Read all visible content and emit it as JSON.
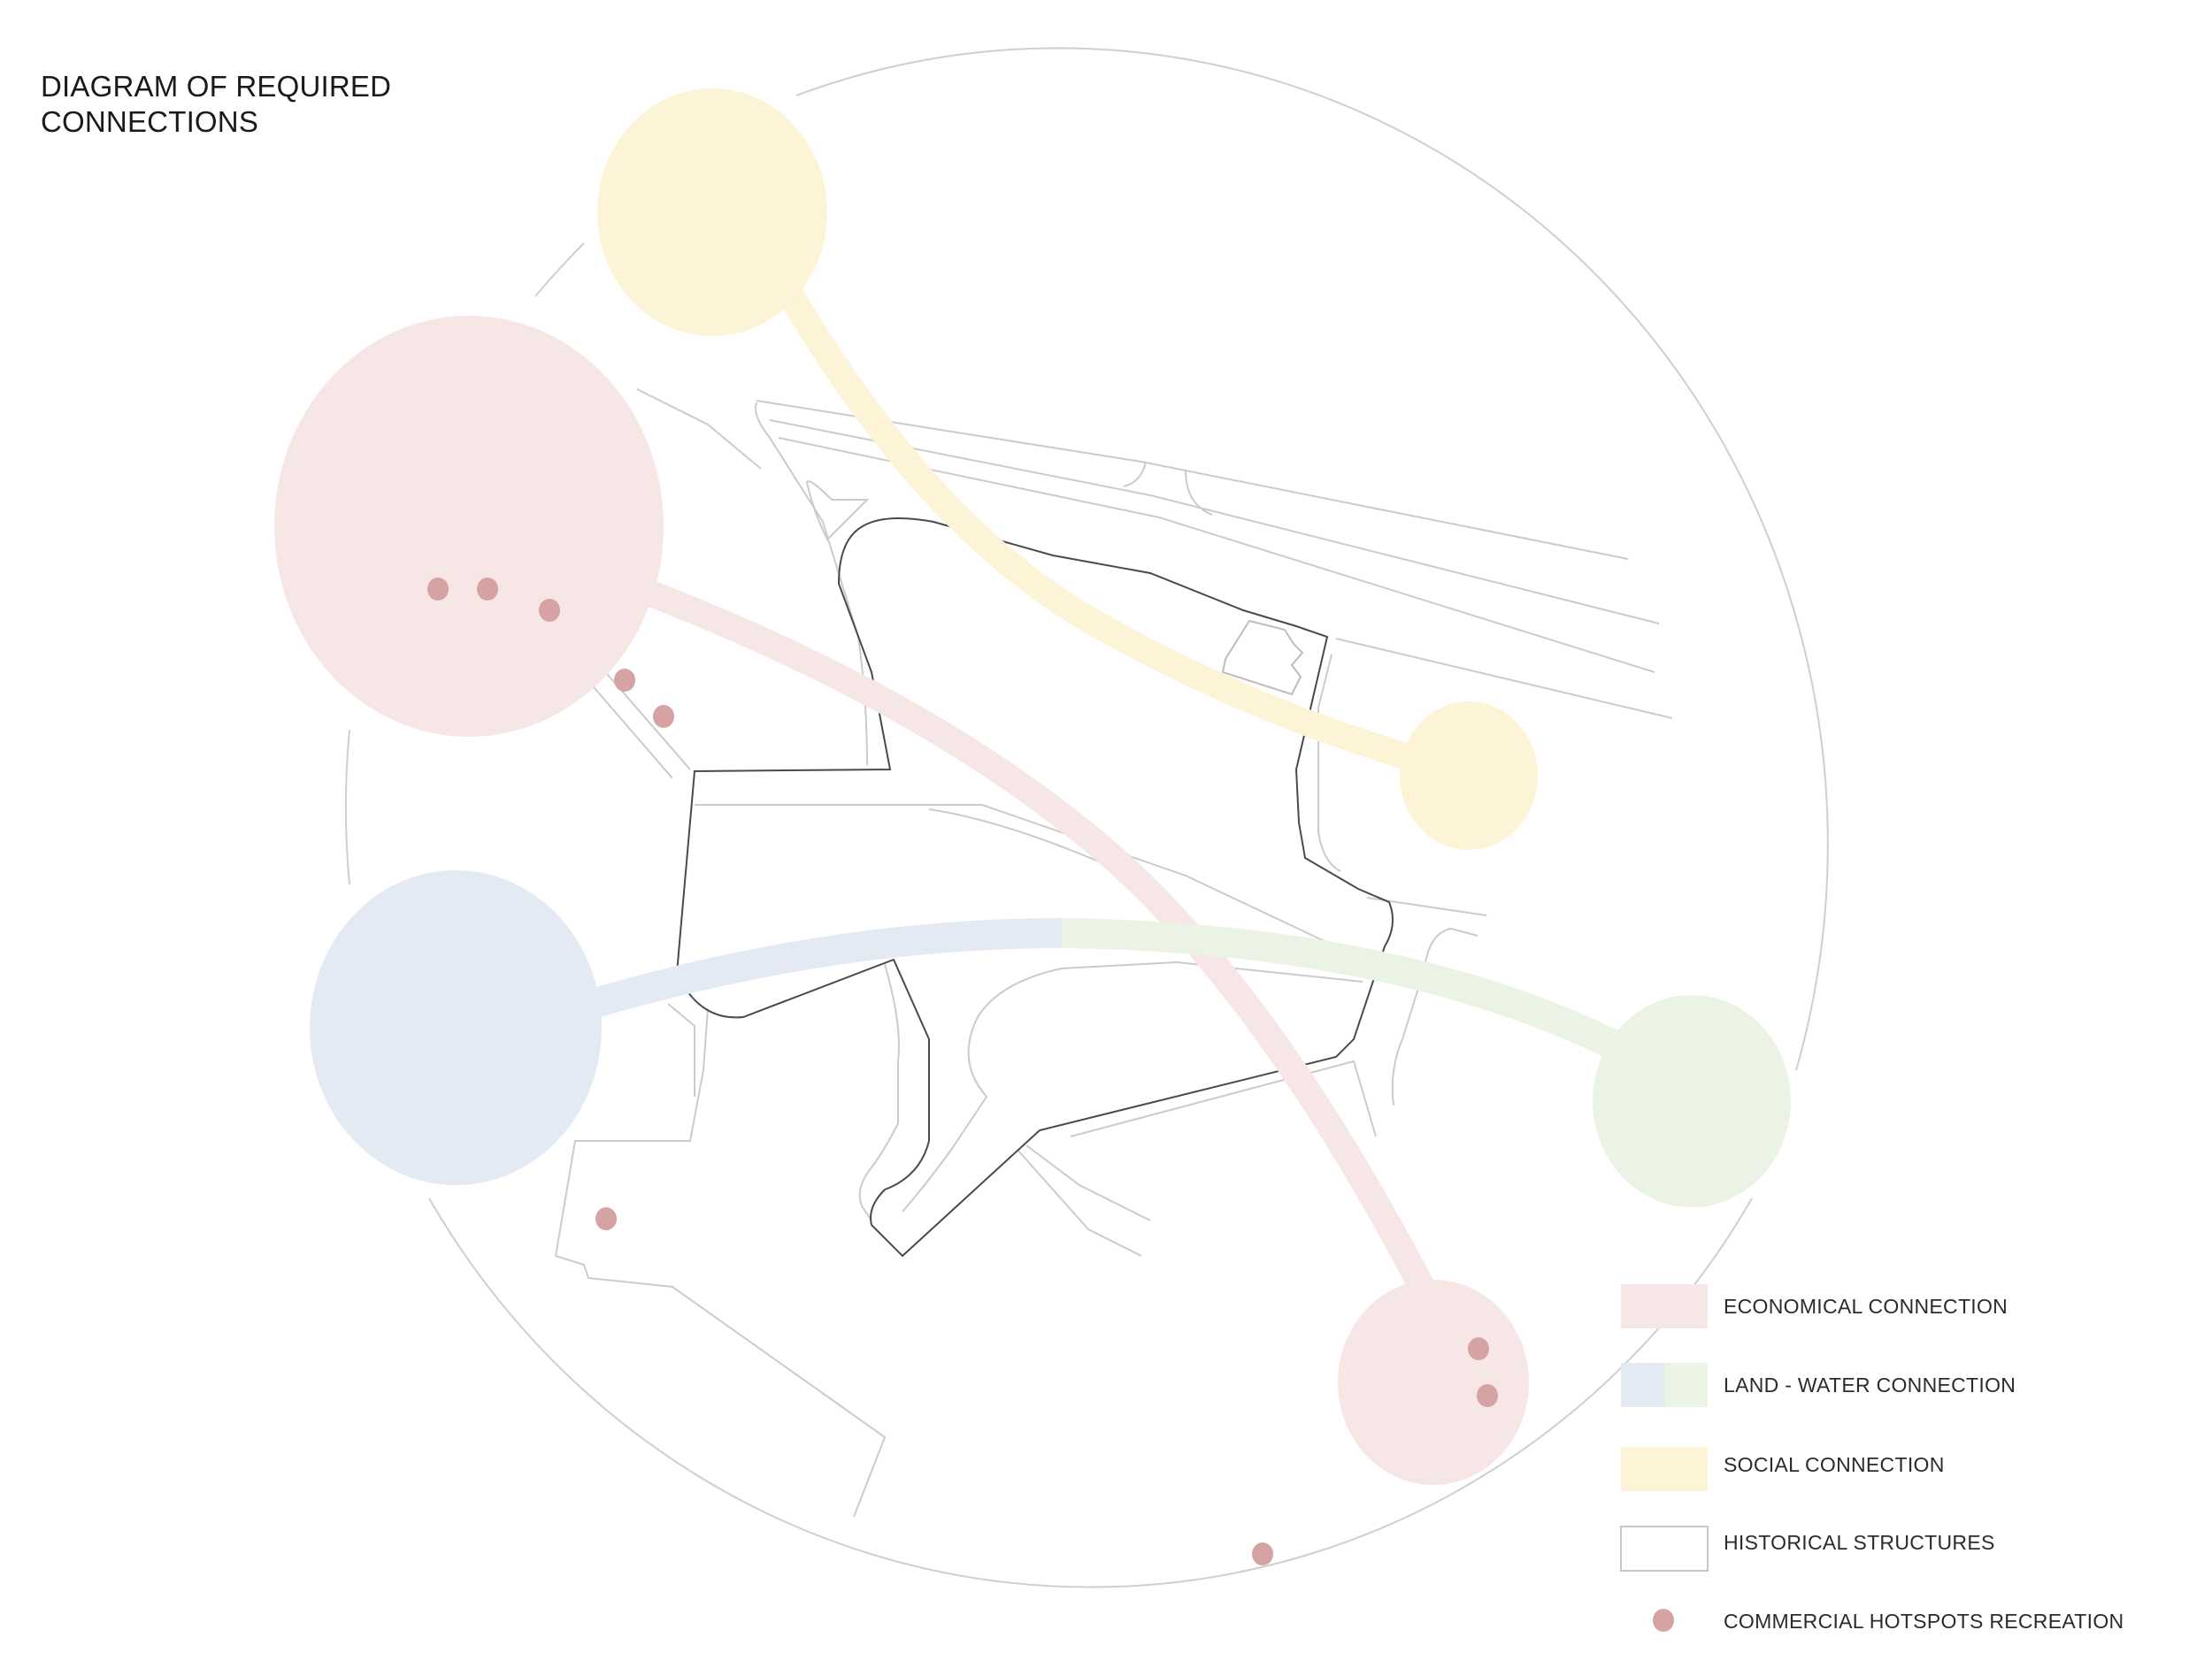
{
  "title": {
    "line1": "DIAGRAM OF REQUIRED",
    "line2": "CONNECTIONS"
  },
  "legend": [
    {
      "label": "ECONOMICAL CONNECTION",
      "swatch": "pink"
    },
    {
      "label": "LAND - WATER CONNECTION",
      "swatch": "blue-green"
    },
    {
      "label": "SOCIAL CONNECTION",
      "swatch": "yellow"
    },
    {
      "label": "HISTORICAL STRUCTURES",
      "swatch": "outline"
    },
    {
      "label": "COMMERCIAL HOTSPOTS RECREATION",
      "swatch": "dot"
    }
  ],
  "colors": {
    "economical": "#f6e6e6",
    "land": "#e4eaf3",
    "water": "#ebf3e4",
    "social": "#fdf3d6",
    "hotspot": "#d5a3a3",
    "outline": "#c8c8c8",
    "historical": "#3a3a3a"
  }
}
